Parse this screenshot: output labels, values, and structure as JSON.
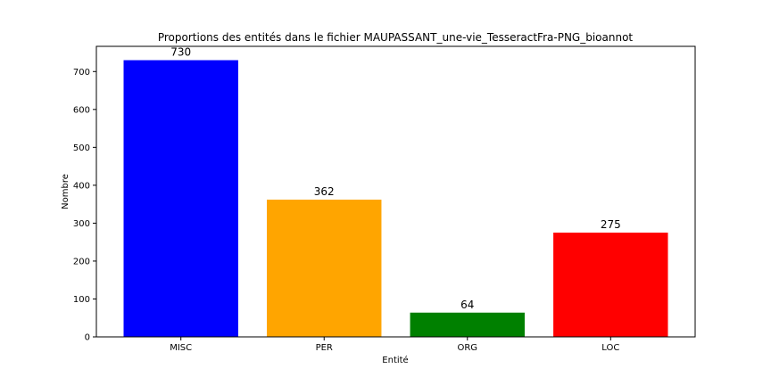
{
  "chart_data": {
    "type": "bar",
    "title": "Proportions des entités dans le fichier MAUPASSANT_une-vie_TesseractFra-PNG_bioannot",
    "xlabel": "Entité",
    "ylabel": "Nombre",
    "categories": [
      "MISC",
      "PER",
      "ORG",
      "LOC"
    ],
    "values": [
      730,
      362,
      64,
      275
    ],
    "data_labels": [
      "730",
      "362",
      "64",
      "275"
    ],
    "colors": [
      "#0000ff",
      "#ffa500",
      "#008000",
      "#ff0000"
    ],
    "ylim": [
      0,
      766.5
    ],
    "yticks": [
      0,
      100,
      200,
      300,
      400,
      500,
      600,
      700
    ],
    "grid": false,
    "legend": "none"
  }
}
